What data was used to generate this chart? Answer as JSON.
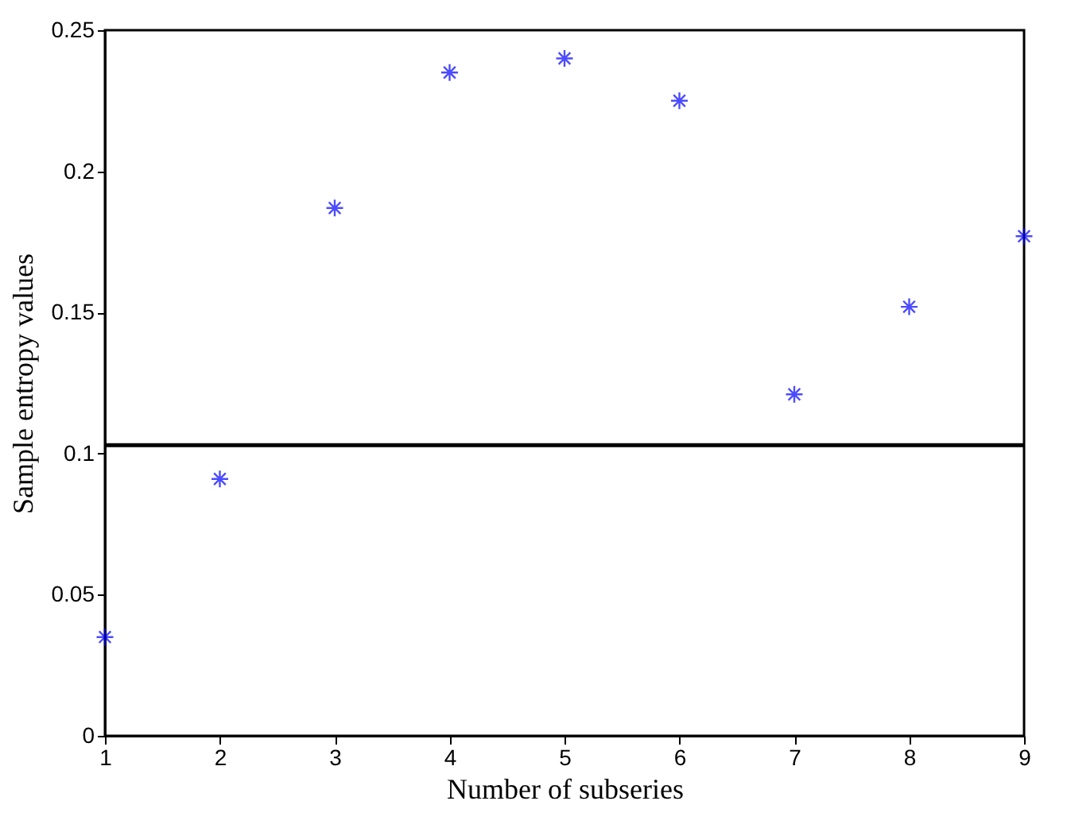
{
  "chart_data": {
    "type": "scatter",
    "xlabel": "Number of subseries",
    "ylabel": "Sample entropy values",
    "x": [
      1,
      2,
      3,
      4,
      5,
      6,
      7,
      8,
      9
    ],
    "series": [
      {
        "color": "#0000ff",
        "values": [
          0.035,
          0.091,
          0.187,
          0.235,
          0.24,
          0.225,
          0.121,
          0.152,
          0.177
        ]
      }
    ],
    "marker": "cross",
    "xlim": [
      1,
      9
    ],
    "xticks": [
      1,
      2,
      3,
      4,
      5,
      6,
      7,
      8,
      9
    ],
    "ylim": [
      0,
      0.25
    ],
    "yticks": [
      0,
      0.05,
      0.1,
      0.15,
      0.2,
      0.25
    ],
    "ref_lines": [
      {
        "axis": "y",
        "value": 0.103,
        "color": "#000000",
        "line_style": "solid"
      }
    ],
    "grid": false
  }
}
